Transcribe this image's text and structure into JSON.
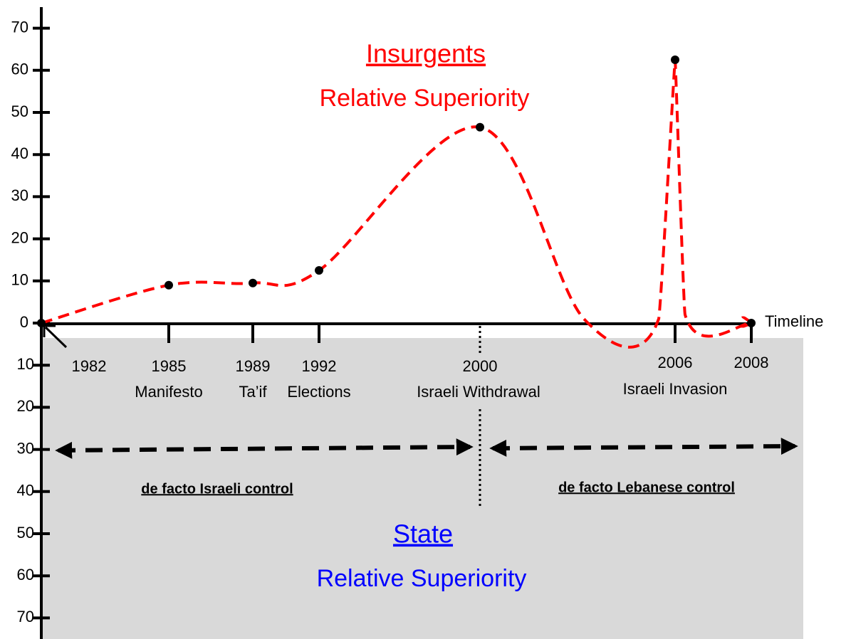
{
  "chart_data": {
    "type": "line",
    "title": "Insurgents",
    "subtitle": "Relative Superiority",
    "lower_title": "State",
    "lower_subtitle": "Relative Superiority",
    "x_label": "Timeline",
    "categories": [
      "1982",
      "1985",
      "1989",
      "1992",
      "2000",
      null,
      null,
      "2006",
      null,
      "2008"
    ],
    "event_labels": [
      null,
      "Manifesto",
      "Ta’if",
      "Elections",
      "Israeli Withdrawal",
      null,
      null,
      "Israeli Invasion",
      null,
      null
    ],
    "values": [
      0,
      9,
      9.5,
      12.5,
      46.5,
      1,
      1,
      62.5,
      2,
      0
    ],
    "color": "#ff0000",
    "upper_color": "#ff0000",
    "lower_color": "#0000ff",
    "periods": [
      "de facto Israeli control",
      "de facto Lebanese control"
    ],
    "ylim": [
      -75,
      75
    ],
    "yticks": [
      70,
      60,
      50,
      40,
      30,
      20,
      10,
      0,
      {
        "value": -10,
        "label": "10"
      },
      {
        "value": -20,
        "label": "20"
      },
      {
        "value": -30,
        "label": "30"
      },
      {
        "value": -40,
        "label": "40"
      },
      {
        "value": -50,
        "label": "50"
      },
      {
        "value": -60,
        "label": "60"
      },
      {
        "value": -70,
        "label": "70"
      }
    ]
  }
}
